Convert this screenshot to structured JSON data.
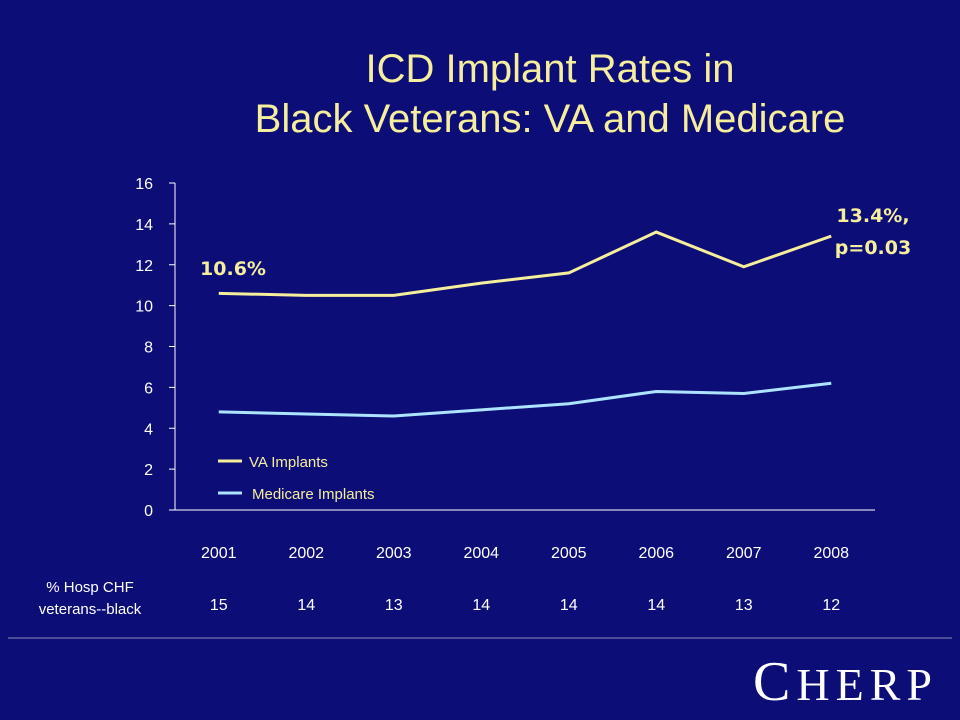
{
  "slide": {
    "title_line1": "ICD Implant Rates in",
    "title_line2": "Black Veterans: VA and Medicare",
    "logo": "CHERP"
  },
  "colors": {
    "background": "#0d0d78",
    "va_line": "#f5ee9c",
    "medicare_line": "#aee3ff",
    "title": "#f5ee9c"
  },
  "chart_data": {
    "type": "line",
    "categories": [
      "2001",
      "2002",
      "2003",
      "2004",
      "2005",
      "2006",
      "2007",
      "2008"
    ],
    "ylim": [
      0,
      16
    ],
    "yticks": [
      0,
      2,
      4,
      6,
      8,
      10,
      12,
      14,
      16
    ],
    "grid": false,
    "legend_position": "bottom-left",
    "series": [
      {
        "name": "VA Implants",
        "values": [
          10.6,
          10.5,
          10.5,
          11.1,
          11.6,
          13.6,
          11.9,
          13.4
        ],
        "color": "#f5ee9c"
      },
      {
        "name": "Medicare Implants",
        "values": [
          4.8,
          4.7,
          4.6,
          4.9,
          5.2,
          5.8,
          5.7,
          6.2
        ],
        "color": "#aee3ff"
      }
    ],
    "annotations": [
      {
        "text": "10.6%",
        "series": "VA Implants",
        "category": "2001"
      },
      {
        "text": "13.4%,",
        "series": "VA Implants",
        "category": "2008"
      },
      {
        "text": "p=0.03",
        "series": "VA Implants",
        "category": "2008"
      }
    ],
    "table_row": {
      "label_line1": "% Hosp CHF",
      "label_line2": "veterans--black",
      "values": [
        "15",
        "14",
        "13",
        "14",
        "14",
        "14",
        "13",
        "12"
      ]
    }
  }
}
